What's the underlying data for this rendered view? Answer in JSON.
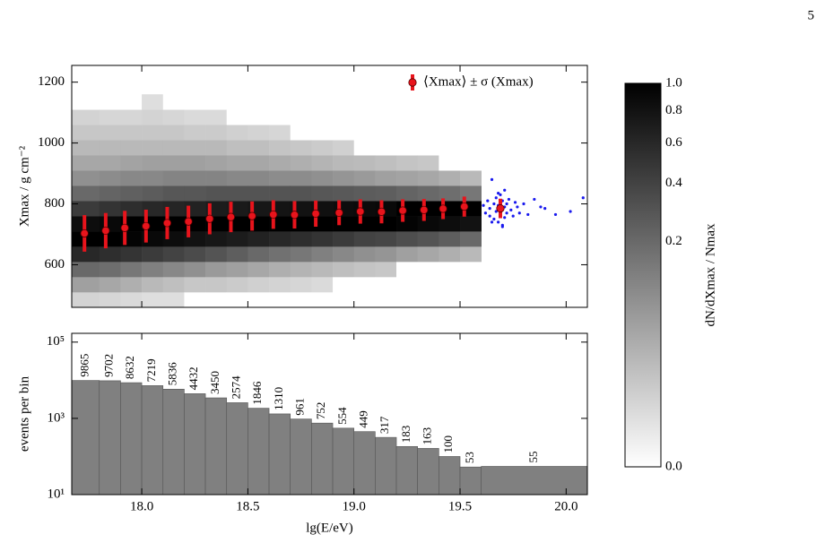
{
  "page": {
    "number": "5"
  },
  "chart_data": [
    {
      "type": "heatmap",
      "y_label": "Xmax / g cm⁻²",
      "xlim": [
        17.67,
        20.1
      ],
      "xticks": [
        18,
        18.5,
        19,
        19.5,
        20
      ],
      "ylim": [
        460,
        1255
      ],
      "yticks": [
        600,
        800,
        1000,
        1200
      ],
      "x_bins": [
        17.67,
        17.8,
        17.9,
        18.0,
        18.1,
        18.2,
        18.3,
        18.4,
        18.5,
        18.6,
        18.7,
        18.8,
        18.9,
        19.0,
        19.1,
        19.2,
        19.3,
        19.4,
        19.5,
        19.6
      ],
      "y_bins": [
        460,
        510,
        560,
        610,
        660,
        710,
        760,
        810,
        860,
        910,
        960,
        1010,
        1060,
        1110,
        1160
      ],
      "values": [
        [
          0.005,
          0.05,
          0.2,
          0.6,
          1,
          0.85,
          0.45,
          0.2,
          0.08,
          0.04,
          0.02,
          0.01,
          0.005,
          0
        ],
        [
          0.004,
          0.04,
          0.18,
          0.55,
          1,
          0.9,
          0.5,
          0.22,
          0.09,
          0.04,
          0.02,
          0.01,
          0.004,
          0
        ],
        [
          0.003,
          0.03,
          0.15,
          0.5,
          0.95,
          1,
          0.55,
          0.24,
          0.1,
          0.045,
          0.02,
          0.01,
          0.004,
          0
        ],
        [
          0.002,
          0.02,
          0.12,
          0.45,
          0.9,
          1,
          0.6,
          0.26,
          0.1,
          0.05,
          0.02,
          0.01,
          0.005,
          0.002
        ],
        [
          0.002,
          0.015,
          0.1,
          0.4,
          0.85,
          1,
          0.62,
          0.28,
          0.11,
          0.05,
          0.02,
          0.01,
          0.004,
          0
        ],
        [
          0,
          0.01,
          0.08,
          0.35,
          0.8,
          1,
          0.65,
          0.28,
          0.11,
          0.05,
          0.02,
          0.008,
          0.003,
          0
        ],
        [
          0,
          0.01,
          0.06,
          0.3,
          0.75,
          1,
          0.7,
          0.3,
          0.11,
          0.045,
          0.02,
          0.008,
          0.003,
          0
        ],
        [
          0,
          0.008,
          0.05,
          0.25,
          0.7,
          1,
          0.72,
          0.3,
          0.1,
          0.04,
          0.015,
          0.006,
          0,
          0
        ],
        [
          0,
          0.006,
          0.04,
          0.2,
          0.65,
          1,
          0.75,
          0.3,
          0.1,
          0.04,
          0.015,
          0.005,
          0,
          0
        ],
        [
          0,
          0.005,
          0.03,
          0.17,
          0.6,
          1,
          0.78,
          0.3,
          0.09,
          0.035,
          0.012,
          0.004,
          0,
          0
        ],
        [
          0,
          0.004,
          0.025,
          0.15,
          0.55,
          1,
          0.8,
          0.3,
          0.09,
          0.03,
          0.01,
          0,
          0,
          0
        ],
        [
          0,
          0.003,
          0.02,
          0.12,
          0.5,
          1,
          0.82,
          0.28,
          0.08,
          0.025,
          0.008,
          0,
          0,
          0
        ],
        [
          0,
          0,
          0.015,
          0.1,
          0.45,
          1,
          0.85,
          0.27,
          0.07,
          0.02,
          0.006,
          0,
          0,
          0
        ],
        [
          0,
          0,
          0.012,
          0.08,
          0.4,
          1,
          0.88,
          0.26,
          0.06,
          0.018,
          0,
          0,
          0,
          0
        ],
        [
          0,
          0,
          0.01,
          0.07,
          0.38,
          1,
          0.9,
          0.25,
          0.05,
          0.015,
          0,
          0,
          0,
          0
        ],
        [
          0,
          0,
          0,
          0.05,
          0.33,
          0.95,
          1,
          0.22,
          0.045,
          0.012,
          0,
          0,
          0,
          0
        ],
        [
          0,
          0,
          0,
          0.04,
          0.3,
          0.9,
          1,
          0.2,
          0.04,
          0.01,
          0,
          0,
          0,
          0
        ],
        [
          0,
          0,
          0,
          0.03,
          0.25,
          0.85,
          1,
          0.18,
          0.03,
          0,
          0,
          0,
          0,
          0
        ],
        [
          0,
          0,
          0,
          0.02,
          0.2,
          0.8,
          1,
          0.15,
          0.02,
          0,
          0,
          0,
          0,
          0
        ]
      ],
      "series": [
        {
          "name": "⟨Xmax⟩ ± σ (Xmax)",
          "color": "#e8141c",
          "x": [
            17.73,
            17.83,
            17.92,
            18.02,
            18.12,
            18.22,
            18.32,
            18.42,
            18.52,
            18.62,
            18.72,
            18.82,
            18.93,
            19.03,
            19.13,
            19.23,
            19.33,
            19.42,
            19.52,
            19.69
          ],
          "values": [
            703,
            712,
            721,
            727,
            737,
            742,
            751,
            757,
            760,
            765,
            764,
            768,
            771,
            775,
            774,
            778,
            780,
            784,
            791,
            785
          ],
          "errors": [
            60,
            58,
            56,
            54,
            53,
            52,
            51,
            50,
            48,
            47,
            45,
            43,
            41,
            40,
            38,
            37,
            36,
            34,
            33,
            32
          ]
        }
      ],
      "legend": "upper right",
      "scatter": {
        "color": "#1a1aee",
        "x": [
          19.61,
          19.62,
          19.63,
          19.64,
          19.64,
          19.65,
          19.66,
          19.66,
          19.67,
          19.67,
          19.68,
          19.68,
          19.69,
          19.69,
          19.7,
          19.7,
          19.71,
          19.71,
          19.72,
          19.72,
          19.73,
          19.74,
          19.75,
          19.76,
          19.77,
          19.78,
          19.8,
          19.82,
          19.85,
          19.88,
          19.9,
          19.95,
          20.02,
          20.08,
          19.65,
          19.7,
          19.71,
          19.68
        ],
        "y": [
          795,
          770,
          810,
          785,
          760,
          880,
          800,
          750,
          820,
          775,
          795,
          740,
          830,
          765,
          810,
          730,
          845,
          790,
          770,
          800,
          815,
          780,
          760,
          805,
          790,
          770,
          800,
          765,
          815,
          790,
          785,
          765,
          775,
          820,
          740,
          725,
          755,
          835
        ]
      },
      "norm": {
        "type": "power",
        "gamma": 0.33
      }
    },
    {
      "type": "histogram",
      "y_label": "events per bin",
      "x_label": "lg(E/eV)",
      "xlim": [
        17.67,
        20.1
      ],
      "xticks": [
        {
          "value": 18,
          "label": "18.0"
        },
        {
          "value": 18.5,
          "label": "18.5"
        },
        {
          "value": 19,
          "label": "19.0"
        },
        {
          "value": 19.5,
          "label": "19.5"
        },
        {
          "value": 20,
          "label": "20.0"
        }
      ],
      "ylim": [
        10,
        170000
      ],
      "log_y": true,
      "yticks": [
        {
          "value": 10,
          "label": "10¹"
        },
        {
          "value": 1000,
          "label": "10³"
        },
        {
          "value": 100000,
          "label": "10⁵"
        }
      ],
      "bins": [
        17.67,
        17.8,
        17.9,
        18.0,
        18.1,
        18.2,
        18.3,
        18.4,
        18.5,
        18.6,
        18.7,
        18.8,
        18.9,
        19.0,
        19.1,
        19.2,
        19.3,
        19.4,
        19.5,
        19.6,
        20.1
      ],
      "values": [
        9865,
        9702,
        8632,
        7219,
        5836,
        4432,
        3450,
        2574,
        1846,
        1310,
        961,
        752,
        554,
        449,
        317,
        183,
        163,
        100,
        53,
        55
      ],
      "color": "#808080"
    },
    {
      "type": "colorbar",
      "label": "dN/dXmax / Nmax",
      "clim": [
        0,
        1
      ],
      "ticks": [
        {
          "value": 0,
          "label": "0.0"
        },
        {
          "value": 0.2,
          "label": "0.2"
        },
        {
          "value": 0.4,
          "label": "0.4"
        },
        {
          "value": 0.6,
          "label": "0.6"
        },
        {
          "value": 0.8,
          "label": "0.8"
        },
        {
          "value": 1,
          "label": "1.0"
        }
      ],
      "norm": {
        "type": "power",
        "gamma": 0.33
      }
    }
  ]
}
